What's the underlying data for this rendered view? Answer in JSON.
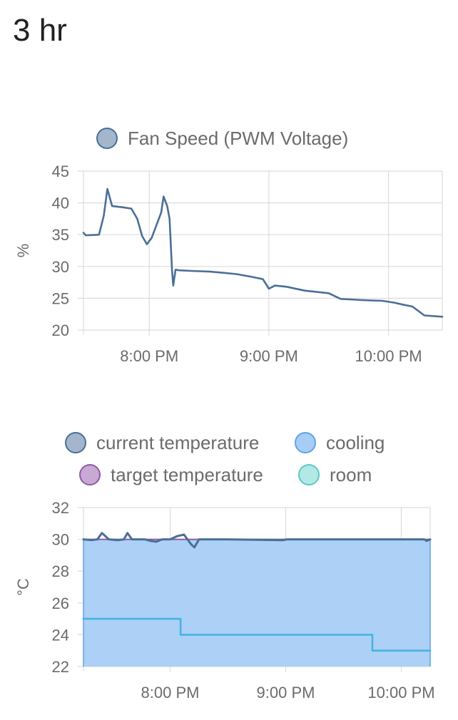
{
  "header": {
    "title": "3 hr"
  },
  "chart_data": [
    {
      "type": "line",
      "ylabel": "%",
      "ylim": [
        20,
        45
      ],
      "yticks": [
        "20",
        "25",
        "30",
        "35",
        "40",
        "45"
      ],
      "xticks": [
        "8:00 PM",
        "9:00 PM",
        "10:00 PM"
      ],
      "xrange_hours": [
        19.45,
        22.45
      ],
      "legend": [
        {
          "name": "Fan Speed (PWM Voltage)",
          "fill": "#a3b6cc",
          "stroke": "#4a6f97"
        }
      ],
      "series": [
        {
          "name": "Fan Speed (PWM Voltage)",
          "color": "#4a6f97",
          "x": [
            19.45,
            19.47,
            19.58,
            19.62,
            19.65,
            19.69,
            19.78,
            19.85,
            19.9,
            19.94,
            19.98,
            20.02,
            20.06,
            20.1,
            20.12,
            20.15,
            20.17,
            20.19,
            20.2,
            20.22,
            20.25,
            20.35,
            20.5,
            20.62,
            20.73,
            20.85,
            20.95,
            21.0,
            21.05,
            21.15,
            21.3,
            21.5,
            21.6,
            21.8,
            21.95,
            22.05,
            22.12,
            22.2,
            22.3,
            22.45
          ],
          "values": [
            35.3,
            34.9,
            35.0,
            38.0,
            42.2,
            39.5,
            39.3,
            39.1,
            37.5,
            34.8,
            33.5,
            34.5,
            36.5,
            38.5,
            41.0,
            39.5,
            37.5,
            29.5,
            27.0,
            29.5,
            29.4,
            29.3,
            29.2,
            29.0,
            28.8,
            28.4,
            28.0,
            26.5,
            27.0,
            26.8,
            26.2,
            25.8,
            24.9,
            24.7,
            24.6,
            24.3,
            24.0,
            23.7,
            22.3,
            22.1
          ]
        }
      ]
    },
    {
      "type": "line",
      "ylabel": "°C",
      "ylim": [
        22,
        32
      ],
      "yticks": [
        "22",
        "24",
        "26",
        "28",
        "30",
        "32"
      ],
      "xticks": [
        "8:00 PM",
        "9:00 PM",
        "10:00 PM"
      ],
      "xrange_hours": [
        19.25,
        22.25
      ],
      "legend": [
        {
          "name": "current temperature",
          "fill": "#a3b6cc",
          "stroke": "#4a6f97"
        },
        {
          "name": "cooling",
          "fill": "#a8cdf5",
          "stroke": "#5fa3e8"
        },
        {
          "name": "target temperature",
          "fill": "#c7a9d4",
          "stroke": "#8e5ba3"
        },
        {
          "name": "room",
          "fill": "#b2e8e5",
          "stroke": "#5ccac4"
        }
      ],
      "series": [
        {
          "name": "current temperature",
          "color": "#4a6f97",
          "x": [
            19.25,
            19.32,
            19.37,
            19.41,
            19.47,
            19.55,
            19.6,
            19.63,
            19.67,
            19.78,
            19.83,
            19.88,
            19.93,
            20.0,
            20.06,
            20.12,
            20.15,
            20.18,
            20.21,
            20.25,
            20.3,
            20.5,
            20.98,
            21.01,
            21.1,
            21.6,
            22.0,
            22.2,
            22.22,
            22.25
          ],
          "values": [
            30.0,
            29.95,
            30.0,
            30.4,
            30.0,
            29.95,
            30.0,
            30.4,
            30.0,
            30.0,
            29.9,
            29.85,
            30.0,
            30.0,
            30.2,
            30.3,
            30.0,
            29.7,
            29.5,
            30.0,
            30.0,
            30.0,
            29.95,
            30.0,
            30.0,
            30.0,
            30.0,
            30.0,
            29.9,
            30.0
          ]
        },
        {
          "name": "target temperature",
          "color": "#8e5ba3",
          "x": [
            19.25,
            22.25
          ],
          "values": [
            30.0,
            30.0
          ]
        },
        {
          "name": "cooling",
          "color": "#5fa3e8",
          "fill": "#a8cdf5",
          "area": true,
          "x": [
            19.25,
            22.25
          ],
          "values": [
            30.0,
            30.0
          ]
        },
        {
          "name": "room",
          "color": "#46b4e0",
          "step": true,
          "x": [
            19.25,
            20.09,
            20.09,
            21.75,
            21.75,
            22.25
          ],
          "values": [
            25.0,
            25.0,
            24.0,
            24.0,
            23.0,
            23.0
          ]
        }
      ]
    }
  ]
}
